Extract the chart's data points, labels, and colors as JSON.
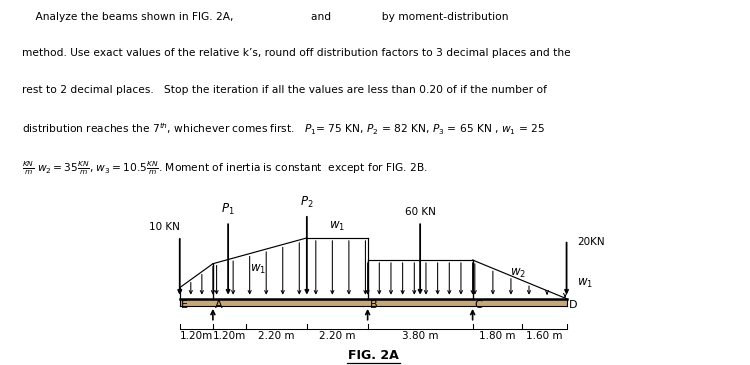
{
  "bg_color": "#ffffff",
  "spans_m": [
    1.2,
    1.2,
    2.2,
    2.2,
    3.8,
    1.8,
    1.6
  ],
  "scale": 0.75,
  "beam_fill": "#c8a87a",
  "beam_thickness": 0.2,
  "header_lines": [
    "    Analyze the beams shown in FIG. 2A,                       and               by moment-distribution",
    "method. Use exact values of the relative k’s, round off distribution factors to 3 decimal places and the",
    "rest to 2 decimal places.   Stop the iteration if all the values are less than 0.20 of if the number of",
    "distribution reaches the 7$^{th}$, whichever comes first.   $P_1$= 75 KN, $P_2$ = 82 KN, $P_3$ = 65 KN , $w_1$ = 25",
    "$\\frac{KN}{m}$ $w_2 = 35\\frac{KN}{m}$, $w_3 = 10.5\\frac{KN}{m}$. Moment of inertia is constant  except for FIG. 2B."
  ],
  "fig_label": "FIG. 2A",
  "node_labels": [
    "E",
    "A",
    "B",
    "C",
    "D"
  ],
  "load_labels": {
    "pt_10kn": "10 KN",
    "P1": "$P_1$",
    "P2": "$P_2$",
    "pt_60kn": "60 KN",
    "pt_20kn": "20KN",
    "w1a": "$w_1$",
    "w1b": "$w_1$",
    "w1c": "$w_1$",
    "w2": "$w_2$"
  },
  "dim_labels": [
    "1.20m",
    "1.20m",
    "2.20 m",
    "2.20 m",
    "3.80 m",
    "1.80 m",
    "1.60 m"
  ]
}
